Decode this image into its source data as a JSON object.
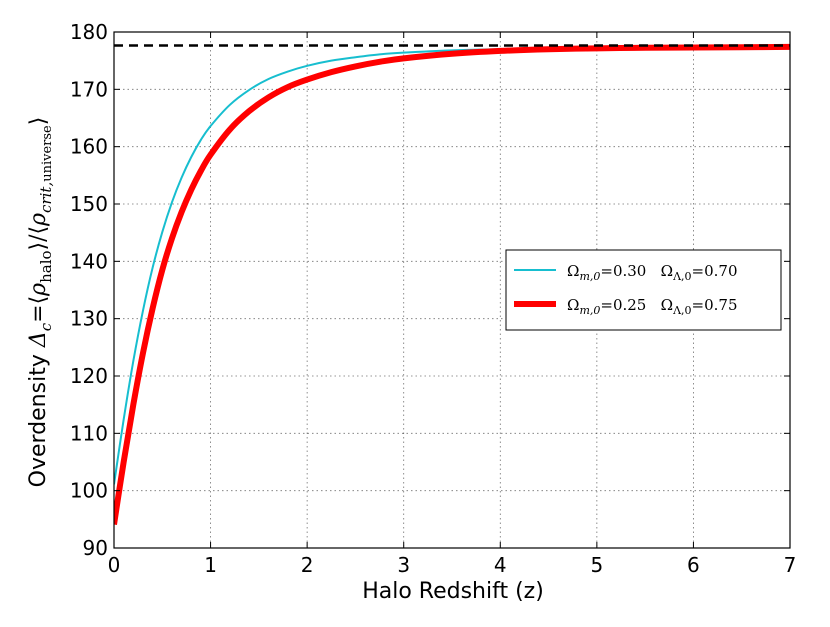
{
  "chart_data": {
    "type": "line",
    "xlabel": "Halo Redshift (z)",
    "ylabel": {
      "prefix": "Overdensity ",
      "delta": "Δ",
      "delta_sub": "c",
      "equals": "=⟨",
      "rho": "ρ",
      "rho_sub_1": "halo",
      "middle": "⟩/⟨",
      "rho_sub_2_italic": "crit,",
      "rho_sub_2_upright": "universe",
      "close": "⟩"
    },
    "xlim": [
      0,
      7
    ],
    "ylim": [
      90,
      180
    ],
    "xticks": [
      "0",
      "1",
      "2",
      "3",
      "4",
      "5",
      "6",
      "7"
    ],
    "yticks": [
      "90",
      "100",
      "110",
      "120",
      "130",
      "140",
      "150",
      "160",
      "170",
      "180"
    ],
    "grid": true,
    "legend_position": "center-right",
    "asymptote": {
      "y": 177.65,
      "style": "dashed",
      "color": "#000000"
    },
    "series": [
      {
        "name": "Ω_{m,0}=0.30   Ω_{Λ,0}=0.70",
        "legend_parts": [
          "Ω",
          "m,0",
          "=0.30   Ω",
          "Λ,0",
          "=0.70"
        ],
        "color": "#17becf",
        "line_width": "thin",
        "x": [
          0,
          0.1,
          0.2,
          0.3,
          0.4,
          0.5,
          0.6,
          0.7,
          0.8,
          0.9,
          1.0,
          1.2,
          1.4,
          1.6,
          1.8,
          2.0,
          2.25,
          2.5,
          2.75,
          3.0,
          3.5,
          4.0,
          4.5,
          5.0,
          5.5,
          6.0,
          6.5,
          7.0
        ],
        "y": [
          101.1,
          112.4,
          122.6,
          131.4,
          138.9,
          145.1,
          150.3,
          154.6,
          158.2,
          161.2,
          163.6,
          167.3,
          169.9,
          171.8,
          173.1,
          174.1,
          175.0,
          175.6,
          176.1,
          176.4,
          176.8,
          177.0,
          177.15,
          177.25,
          177.3,
          177.35,
          177.4,
          177.45
        ]
      },
      {
        "name": "Ω_{m,0}=0.25   Ω_{Λ,0}=0.75",
        "legend_parts": [
          "Ω",
          "m,0",
          "=0.25   Ω",
          "Λ,0",
          "=0.75"
        ],
        "color": "#ff0000",
        "line_width": "thick",
        "x": [
          0,
          0.1,
          0.2,
          0.3,
          0.4,
          0.5,
          0.6,
          0.7,
          0.8,
          0.9,
          1.0,
          1.2,
          1.4,
          1.6,
          1.8,
          2.0,
          2.25,
          2.5,
          2.75,
          3.0,
          3.5,
          4.0,
          4.5,
          5.0,
          5.5,
          6.0,
          6.5,
          7.0
        ],
        "y": [
          94.1,
          105.0,
          115.0,
          124.0,
          131.8,
          138.5,
          144.0,
          148.6,
          152.5,
          155.8,
          158.6,
          163.0,
          166.2,
          168.6,
          170.4,
          171.7,
          173.0,
          174.0,
          174.8,
          175.4,
          176.2,
          176.7,
          177.0,
          177.15,
          177.25,
          177.3,
          177.35,
          177.4
        ]
      }
    ]
  }
}
